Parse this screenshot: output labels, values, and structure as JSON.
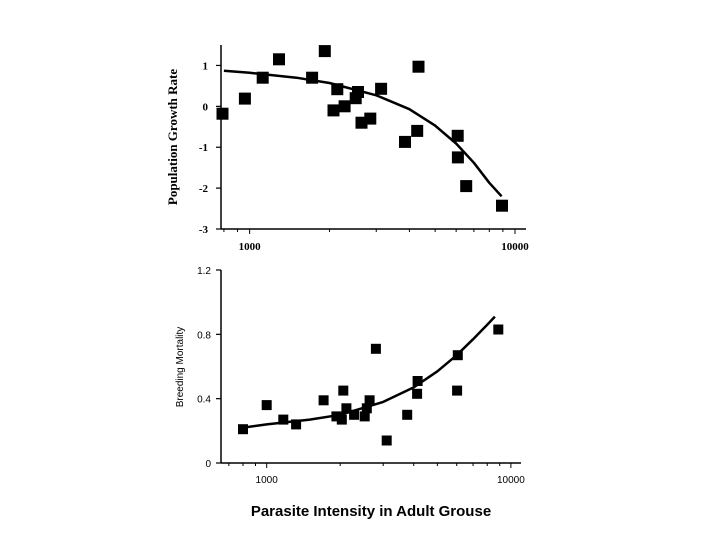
{
  "chart_data": [
    {
      "type": "scatter",
      "title": "",
      "xlabel": "",
      "ylabel": "Population Growth Rate",
      "xscale": "log",
      "xlim": [
        780,
        11000
      ],
      "ylim": [
        -3,
        1.5
      ],
      "xticks": [
        1000,
        10000
      ],
      "xtick_labels": [
        "1000",
        "10000"
      ],
      "yticks": [
        -3,
        -2,
        -1,
        0,
        1
      ],
      "ytick_labels": [
        "-3",
        "-2",
        "-1",
        "0",
        "1"
      ],
      "grid": false,
      "marker": "square",
      "color": "#000000",
      "points": [
        {
          "x": 790,
          "y": -0.18
        },
        {
          "x": 960,
          "y": 0.19
        },
        {
          "x": 1120,
          "y": 0.7
        },
        {
          "x": 1290,
          "y": 1.15
        },
        {
          "x": 1720,
          "y": 0.7
        },
        {
          "x": 1920,
          "y": 1.35
        },
        {
          "x": 2070,
          "y": -0.1
        },
        {
          "x": 2140,
          "y": 0.42
        },
        {
          "x": 2280,
          "y": 0.0
        },
        {
          "x": 2510,
          "y": 0.2
        },
        {
          "x": 2560,
          "y": 0.35
        },
        {
          "x": 2640,
          "y": -0.4
        },
        {
          "x": 2850,
          "y": -0.3
        },
        {
          "x": 3130,
          "y": 0.43
        },
        {
          "x": 3850,
          "y": -0.87
        },
        {
          "x": 4280,
          "y": -0.6
        },
        {
          "x": 4330,
          "y": 0.97
        },
        {
          "x": 6080,
          "y": -0.72
        },
        {
          "x": 6090,
          "y": -1.25
        },
        {
          "x": 6550,
          "y": -1.95
        },
        {
          "x": 8930,
          "y": -2.43
        }
      ],
      "trend": {
        "x": [
          800,
          1000,
          1500,
          2000,
          3000,
          4000,
          5000,
          6000,
          7000,
          8000,
          8900
        ],
        "y": [
          0.87,
          0.82,
          0.7,
          0.57,
          0.27,
          -0.07,
          -0.47,
          -0.91,
          -1.38,
          -1.87,
          -2.2
        ]
      }
    },
    {
      "type": "scatter",
      "title": "",
      "xlabel": "Parasite Intensity in Adult Grouse",
      "ylabel": "Breeding Mortality",
      "xscale": "log",
      "xlim": [
        650,
        11000
      ],
      "ylim": [
        0,
        1.2
      ],
      "xticks": [
        1000,
        10000
      ],
      "xtick_labels": [
        "1000",
        "10000"
      ],
      "yticks": [
        0,
        0.4,
        0.8,
        1.2
      ],
      "ytick_labels": [
        "0",
        "0.4",
        "0.8",
        "1.2"
      ],
      "grid": false,
      "marker": "square",
      "color": "#000000",
      "points": [
        {
          "x": 800,
          "y": 0.21
        },
        {
          "x": 1000,
          "y": 0.36
        },
        {
          "x": 1170,
          "y": 0.27
        },
        {
          "x": 1320,
          "y": 0.24
        },
        {
          "x": 1710,
          "y": 0.39
        },
        {
          "x": 1930,
          "y": 0.29
        },
        {
          "x": 2030,
          "y": 0.27
        },
        {
          "x": 2060,
          "y": 0.45
        },
        {
          "x": 2120,
          "y": 0.34
        },
        {
          "x": 2280,
          "y": 0.3
        },
        {
          "x": 2520,
          "y": 0.29
        },
        {
          "x": 2570,
          "y": 0.34
        },
        {
          "x": 2640,
          "y": 0.39
        },
        {
          "x": 2800,
          "y": 0.71
        },
        {
          "x": 3100,
          "y": 0.14
        },
        {
          "x": 3760,
          "y": 0.3
        },
        {
          "x": 4130,
          "y": 0.43
        },
        {
          "x": 4150,
          "y": 0.51
        },
        {
          "x": 6020,
          "y": 0.45
        },
        {
          "x": 6060,
          "y": 0.67
        },
        {
          "x": 8880,
          "y": 0.83
        }
      ],
      "trend": {
        "x": [
          800,
          1000,
          1500,
          2000,
          3000,
          4000,
          5000,
          6000,
          7000,
          8000,
          8600
        ],
        "y": [
          0.22,
          0.24,
          0.27,
          0.3,
          0.38,
          0.47,
          0.57,
          0.67,
          0.77,
          0.86,
          0.91
        ]
      }
    }
  ]
}
